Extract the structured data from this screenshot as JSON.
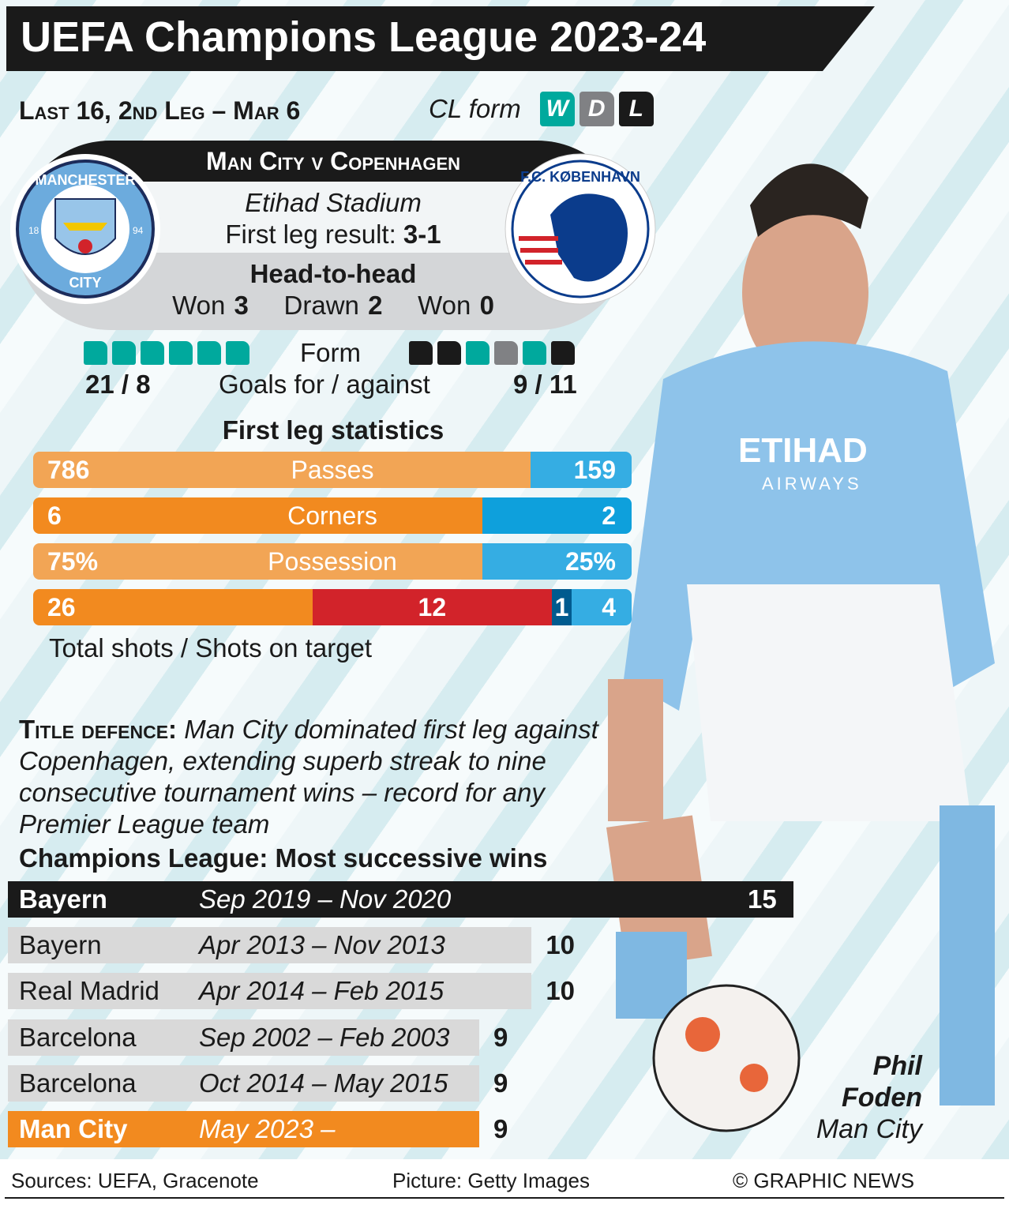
{
  "title": "UEFA Champions League 2023-24",
  "subtitle": "Last 16, 2nd Leg – Mar 6",
  "cl_form": {
    "label": "CL form",
    "legend": [
      {
        "key": "W",
        "color": "#00a99d"
      },
      {
        "key": "D",
        "color": "#808184"
      },
      {
        "key": "L",
        "color": "#1a1a1a"
      }
    ]
  },
  "match": {
    "title": "Man City v Copenhagen",
    "venue": "Etihad Stadium",
    "first_leg_label": "First leg result:",
    "first_leg_score": "3-1",
    "h2h_title": "Head-to-head",
    "h2h": [
      {
        "label": "Won",
        "value": "3"
      },
      {
        "label": "Drawn",
        "value": "2"
      },
      {
        "label": "Won",
        "value": "0"
      }
    ],
    "home_logo": {
      "text_top": "MANCHESTER",
      "text_bottom": "CITY",
      "years": [
        "18",
        "94"
      ]
    },
    "away_logo": {
      "text": "F.C. KØBENHAVN"
    }
  },
  "form": {
    "label": "Form",
    "home": [
      "W",
      "W",
      "W",
      "W",
      "W",
      "W"
    ],
    "away": [
      "L",
      "L",
      "W",
      "D",
      "W",
      "L"
    ],
    "goals_label": "Goals for / against",
    "home_goals": "21 / 8",
    "away_goals": "9 / 11"
  },
  "stats": {
    "title": "First leg statistics",
    "rows": [
      {
        "label": "Passes",
        "home": "786",
        "away": "159",
        "home_value": 786,
        "away_value": 159
      },
      {
        "label": "Corners",
        "home": "6",
        "away": "2",
        "home_value": 6,
        "away_value": 2
      },
      {
        "label": "Possession",
        "home": "75%",
        "away": "25%",
        "home_value": 75,
        "away_value": 25
      }
    ],
    "shots": {
      "home_total": "26",
      "home_on_target": "12",
      "away_on_target": "1",
      "away_total": "4"
    },
    "shots_caption": "Total shots / Shots on target"
  },
  "colors": {
    "orange": "#f28a1f",
    "orange_light": "#f2a555",
    "blue": "#0ea0dc",
    "blue_light": "#35ade3",
    "red": "#d2232a",
    "dark_blue": "#005b8f"
  },
  "story": {
    "heading": "Title defence:",
    "text": "Man City dominated first leg against Copenhagen, extending superb streak to nine consecutive tournament wins – record for any Premier League team"
  },
  "ranking": {
    "title": "Champions League: Most successive wins",
    "rows": [
      {
        "team": "Bayern",
        "period": "Sep 2019 – Nov 2020",
        "wins": 15
      },
      {
        "team": "Bayern",
        "period": "Apr 2013 – Nov 2013",
        "wins": 10
      },
      {
        "team": "Real Madrid",
        "period": "Apr 2014 – Feb 2015",
        "wins": 10
      },
      {
        "team": "Barcelona",
        "period": "Sep 2002 – Feb 2003",
        "wins": 9
      },
      {
        "team": "Barcelona",
        "period": "Oct 2014 – May 2015",
        "wins": 9
      },
      {
        "team": "Man City",
        "period": "May 2023 –",
        "wins": 9
      }
    ]
  },
  "player": {
    "first": "Phil",
    "last": "Foden",
    "club": "Man City"
  },
  "footer": {
    "sources": "Sources: UEFA, Gracenote",
    "picture": "Picture: Getty Images",
    "credit": "© GRAPHIC NEWS"
  }
}
